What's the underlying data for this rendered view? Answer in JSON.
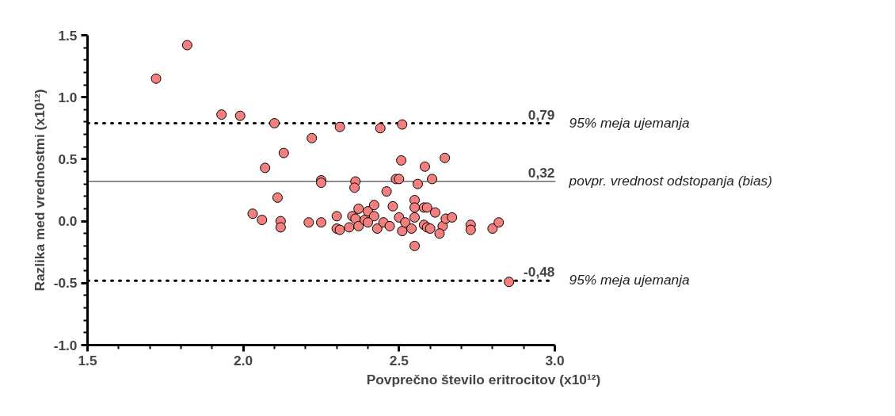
{
  "chart_data": {
    "type": "scatter",
    "xlabel": "Povprečno število eritrocitov (x10¹²)",
    "ylabel": "Razlika med vrednostmi (x10¹²)",
    "marker": "circle",
    "grid": false,
    "xlim": [
      1.5,
      3.0
    ],
    "xticks": [
      {
        "value": 1.5,
        "label": "1.5"
      },
      {
        "value": 2.0,
        "label": "2.0"
      },
      {
        "value": 2.5,
        "label": "2.5"
      },
      {
        "value": 3.0,
        "label": "3.0"
      }
    ],
    "ylim": [
      -1.0,
      1.5
    ],
    "yticks": [
      {
        "value": -1.0,
        "label": "-1.0"
      },
      -0.5,
      {
        "value": 0,
        "label": "0.0"
      },
      0.5,
      {
        "value": 1.0,
        "label": "1.0"
      },
      1.5
    ],
    "series": [
      {
        "color": "#f47f7f",
        "x": [
          1.72,
          1.82,
          1.93,
          1.99,
          2.1,
          2.31,
          2.44,
          2.51,
          2.22,
          2.13,
          2.07,
          2.25,
          2.25,
          2.36,
          2.357,
          2.49,
          2.5,
          2.507,
          2.46,
          2.11,
          2.03,
          2.06,
          2.12,
          2.12,
          2.21,
          2.25,
          2.3,
          2.3,
          2.31,
          2.34,
          2.35,
          2.37,
          2.36,
          2.37,
          2.39,
          2.4,
          2.42,
          2.42,
          2.4,
          2.43,
          2.45,
          2.47,
          2.48,
          2.5,
          2.51,
          2.52,
          2.54,
          2.55,
          2.55,
          2.55,
          2.55,
          2.56,
          2.583,
          2.647,
          2.606,
          2.58,
          2.59,
          2.616,
          2.58,
          2.59,
          2.6,
          2.64,
          2.63,
          2.65,
          2.67,
          2.73,
          2.73,
          2.8,
          2.82,
          2.853
        ],
        "values": [
          1.15,
          1.42,
          0.86,
          0.85,
          0.79,
          0.76,
          0.75,
          0.78,
          0.67,
          0.55,
          0.43,
          0.33,
          0.31,
          0.32,
          0.27,
          0.34,
          0.34,
          0.49,
          0.24,
          0.19,
          0.06,
          0.01,
          0.0,
          -0.05,
          -0.01,
          -0.01,
          0.04,
          -0.06,
          -0.07,
          -0.05,
          0.04,
          0.1,
          0.02,
          -0.04,
          0.01,
          0.08,
          0.13,
          0.04,
          -0.01,
          -0.06,
          -0.01,
          -0.04,
          0.12,
          0.03,
          -0.08,
          -0.01,
          -0.06,
          0.17,
          0.11,
          0.03,
          -0.2,
          0.3,
          0.44,
          0.51,
          0.34,
          0.11,
          0.11,
          0.07,
          -0.03,
          -0.05,
          -0.06,
          -0.04,
          -0.1,
          0.02,
          0.03,
          -0.03,
          -0.07,
          -0.06,
          -0.01,
          -0.49
        ]
      }
    ],
    "ref_lines": [
      {
        "axis": "y",
        "value": 0.79,
        "label": "95% meja ujemanja",
        "color": "#000000",
        "line_style": "dotted"
      },
      {
        "axis": "y",
        "value": 0.32,
        "label": "povpr. vrednost odstopanja (bias)",
        "color": "#8c8c8c",
        "line_style": "solid"
      },
      {
        "axis": "y",
        "value": -0.48,
        "label": "95% meja ujemanja",
        "color": "#000000",
        "line_style": "dotted"
      }
    ],
    "annotations": [
      {
        "text": "0,79",
        "y": 0.79
      },
      {
        "text": "0,32",
        "y": 0.32
      },
      {
        "text": "-0,48",
        "y": -0.48
      }
    ]
  }
}
